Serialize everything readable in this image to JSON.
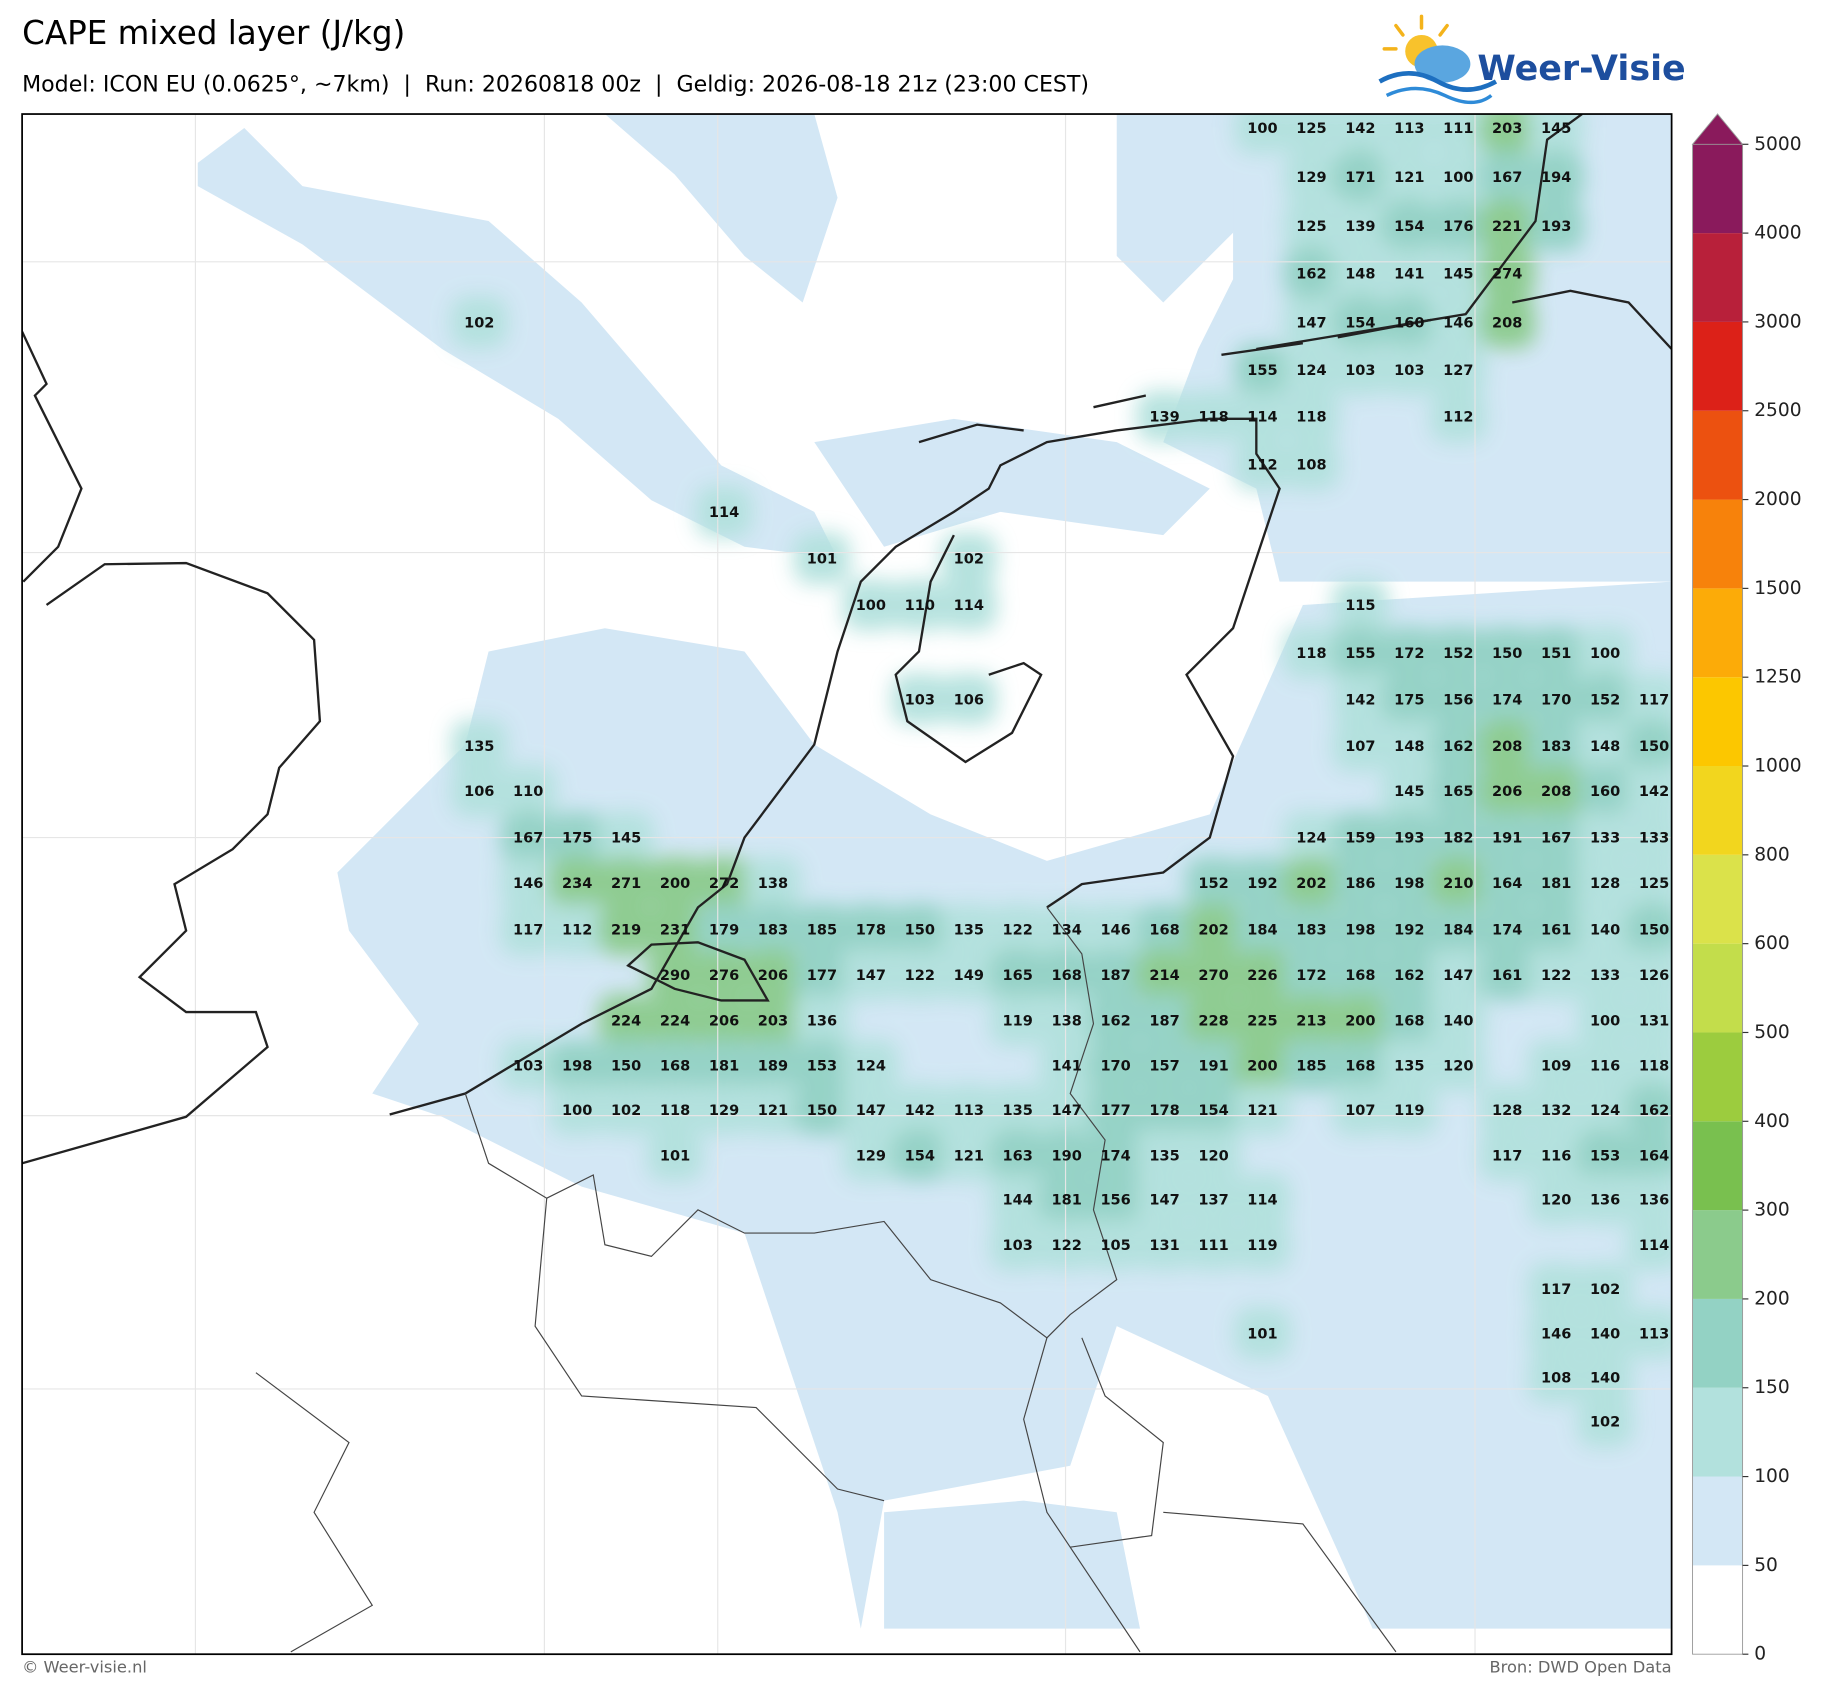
{
  "header": {
    "title": "CAPE mixed layer (J/kg)",
    "subtitle": "Model: ICON EU (0.0625°, ~7km)  |  Run: 20260818 00z  |  Geldig: 2026-08-18 21z (23:00 CEST)",
    "logo": "Weer-Visie"
  },
  "map": {
    "value_grid": [
      [
        null,
        null,
        null,
        null,
        null,
        null,
        null,
        null,
        null,
        null,
        null,
        null,
        null,
        null,
        null,
        null,
        100,
        125,
        142,
        113,
        111,
        203,
        145,
        null,
        null
      ],
      [
        null,
        null,
        null,
        null,
        null,
        null,
        null,
        null,
        null,
        null,
        null,
        null,
        null,
        null,
        null,
        null,
        null,
        129,
        171,
        121,
        100,
        167,
        194,
        null,
        null
      ],
      [
        null,
        null,
        null,
        null,
        null,
        null,
        null,
        null,
        null,
        null,
        null,
        null,
        null,
        null,
        null,
        null,
        null,
        125,
        139,
        154,
        176,
        221,
        193,
        null,
        null
      ],
      [
        null,
        null,
        null,
        null,
        null,
        null,
        null,
        null,
        null,
        null,
        null,
        null,
        null,
        null,
        null,
        null,
        null,
        162,
        148,
        141,
        145,
        274,
        null,
        null,
        null
      ],
      [
        102,
        null,
        null,
        null,
        null,
        null,
        null,
        null,
        null,
        null,
        null,
        null,
        null,
        null,
        null,
        null,
        null,
        147,
        154,
        160,
        146,
        208,
        null,
        null,
        null
      ],
      [
        null,
        null,
        null,
        null,
        null,
        null,
        null,
        null,
        null,
        null,
        null,
        null,
        null,
        null,
        null,
        null,
        155,
        124,
        103,
        103,
        127,
        null,
        null,
        null,
        null
      ],
      [
        null,
        null,
        null,
        null,
        null,
        null,
        null,
        null,
        null,
        null,
        null,
        null,
        null,
        null,
        139,
        118,
        114,
        118,
        null,
        null,
        112,
        null,
        null,
        null,
        null
      ],
      [
        null,
        null,
        null,
        null,
        null,
        null,
        null,
        null,
        null,
        null,
        null,
        null,
        null,
        null,
        null,
        null,
        112,
        108,
        null,
        null,
        null,
        null,
        null,
        null,
        null
      ],
      [
        null,
        null,
        null,
        null,
        null,
        114,
        null,
        null,
        null,
        null,
        null,
        null,
        null,
        null,
        null,
        null,
        null,
        null,
        null,
        null,
        null,
        null,
        null,
        null,
        null
      ],
      [
        null,
        null,
        null,
        null,
        null,
        null,
        null,
        101,
        null,
        null,
        102,
        null,
        null,
        null,
        null,
        null,
        null,
        null,
        null,
        null,
        null,
        null,
        null,
        null,
        null
      ],
      [
        null,
        null,
        null,
        null,
        null,
        null,
        null,
        null,
        100,
        110,
        114,
        null,
        null,
        null,
        null,
        null,
        null,
        null,
        115,
        null,
        null,
        null,
        null,
        null,
        null
      ],
      [
        null,
        null,
        null,
        null,
        null,
        null,
        null,
        null,
        null,
        null,
        null,
        null,
        null,
        null,
        null,
        null,
        null,
        118,
        155,
        172,
        152,
        150,
        151,
        100,
        null
      ],
      [
        null,
        null,
        null,
        null,
        null,
        null,
        null,
        null,
        null,
        103,
        106,
        null,
        null,
        null,
        null,
        null,
        null,
        null,
        142,
        175,
        156,
        174,
        170,
        152,
        117
      ],
      [
        135,
        null,
        null,
        null,
        null,
        null,
        null,
        null,
        null,
        null,
        null,
        null,
        null,
        null,
        null,
        null,
        null,
        null,
        107,
        148,
        162,
        208,
        183,
        148,
        150
      ],
      [
        106,
        110,
        null,
        null,
        null,
        null,
        null,
        null,
        null,
        null,
        null,
        null,
        null,
        null,
        null,
        null,
        null,
        null,
        null,
        145,
        165,
        206,
        208,
        160,
        142
      ],
      [
        null,
        167,
        175,
        145,
        null,
        null,
        null,
        null,
        null,
        null,
        null,
        null,
        null,
        null,
        null,
        null,
        null,
        124,
        159,
        193,
        182,
        191,
        167,
        133,
        133
      ],
      [
        null,
        146,
        234,
        271,
        200,
        272,
        138,
        null,
        null,
        null,
        null,
        null,
        null,
        null,
        null,
        152,
        192,
        202,
        186,
        198,
        210,
        164,
        181,
        128,
        125
      ],
      [
        null,
        117,
        112,
        219,
        231,
        179,
        183,
        185,
        178,
        150,
        135,
        122,
        134,
        146,
        168,
        202,
        184,
        183,
        198,
        192,
        184,
        174,
        161,
        140,
        150
      ],
      [
        null,
        null,
        null,
        null,
        290,
        276,
        206,
        177,
        147,
        122,
        149,
        165,
        168,
        187,
        214,
        270,
        226,
        172,
        168,
        162,
        147,
        161,
        122,
        133,
        126
      ],
      [
        null,
        null,
        null,
        224,
        224,
        206,
        203,
        136,
        null,
        null,
        null,
        119,
        138,
        162,
        187,
        228,
        225,
        213,
        200,
        168,
        140,
        null,
        null,
        100,
        131
      ],
      [
        null,
        103,
        198,
        150,
        168,
        181,
        189,
        153,
        124,
        null,
        null,
        null,
        141,
        170,
        157,
        191,
        200,
        185,
        168,
        135,
        120,
        null,
        109,
        116,
        118
      ],
      [
        null,
        null,
        100,
        102,
        118,
        129,
        121,
        150,
        147,
        142,
        113,
        135,
        147,
        177,
        178,
        154,
        121,
        null,
        107,
        119,
        null,
        128,
        132,
        124,
        162
      ],
      [
        null,
        null,
        null,
        null,
        101,
        null,
        null,
        null,
        129,
        154,
        121,
        163,
        190,
        174,
        135,
        120,
        null,
        null,
        null,
        null,
        null,
        117,
        116,
        153,
        164
      ],
      [
        null,
        null,
        null,
        null,
        null,
        null,
        null,
        null,
        null,
        null,
        null,
        144,
        181,
        156,
        147,
        137,
        114,
        null,
        null,
        null,
        null,
        null,
        120,
        136,
        136
      ],
      [
        null,
        null,
        null,
        null,
        null,
        null,
        null,
        null,
        null,
        null,
        null,
        103,
        122,
        105,
        131,
        111,
        119,
        null,
        null,
        null,
        null,
        null,
        null,
        null,
        114
      ],
      [
        null,
        null,
        null,
        null,
        null,
        null,
        null,
        null,
        null,
        null,
        null,
        null,
        null,
        null,
        null,
        null,
        null,
        null,
        null,
        null,
        null,
        null,
        117,
        102,
        null
      ],
      [
        null,
        null,
        null,
        null,
        null,
        null,
        null,
        null,
        null,
        null,
        null,
        null,
        null,
        null,
        null,
        null,
        101,
        null,
        null,
        null,
        null,
        null,
        146,
        140,
        113
      ],
      [
        null,
        null,
        null,
        null,
        null,
        null,
        null,
        null,
        null,
        null,
        null,
        null,
        null,
        null,
        null,
        null,
        null,
        null,
        null,
        null,
        null,
        null,
        108,
        140,
        null
      ],
      [
        null,
        null,
        null,
        null,
        null,
        null,
        null,
        null,
        null,
        null,
        null,
        null,
        null,
        null,
        null,
        null,
        null,
        null,
        null,
        null,
        null,
        null,
        null,
        102,
        null
      ]
    ]
  },
  "colorbar": {
    "ticks": [
      0,
      50,
      100,
      150,
      200,
      300,
      400,
      500,
      600,
      800,
      1000,
      1250,
      1500,
      2000,
      2500,
      3000,
      4000,
      5000
    ],
    "colors": [
      "#ffffff",
      "#d3e7f5",
      "#b2e1dd",
      "#93d2c4",
      "#8bcb8c",
      "#79c04f",
      "#9ccc3e",
      "#c3dd4b",
      "#dbe24a",
      "#f2d61e",
      "#fcc700",
      "#fcab08",
      "#f7820b",
      "#ec5110",
      "#dc2118",
      "#b8203a",
      "#8a1a5c"
    ]
  },
  "footer": {
    "left": "© Weer-visie.nl",
    "right": "Bron: DWD Open Data"
  }
}
